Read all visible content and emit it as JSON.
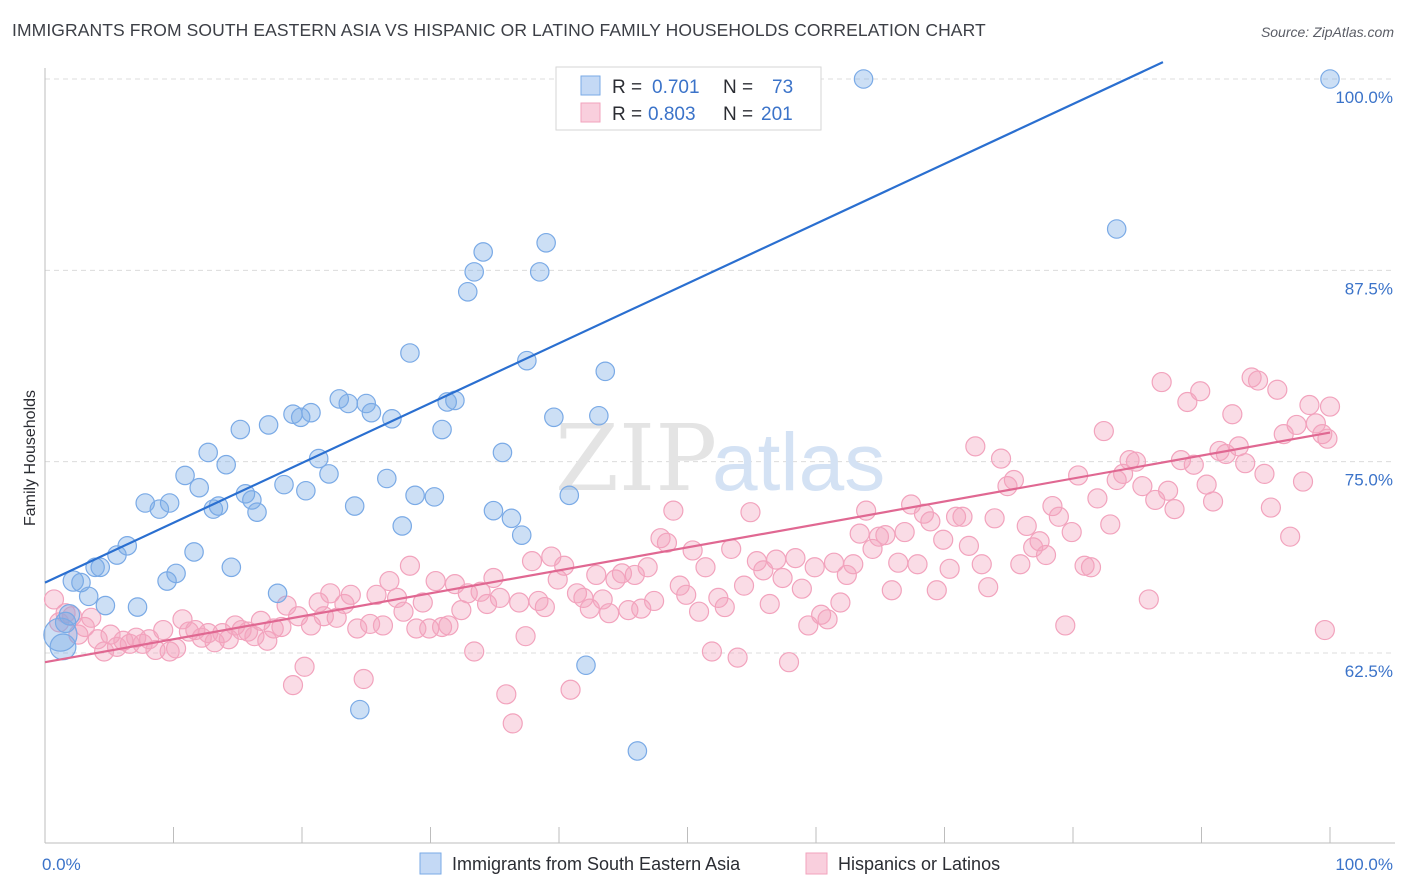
{
  "title": "IMMIGRANTS FROM SOUTH EASTERN ASIA VS HISPANIC OR LATINO FAMILY HOUSEHOLDS CORRELATION CHART",
  "source": "Source: ZipAtlas.com",
  "watermark": {
    "zip": "ZIP",
    "atlas": "atlas"
  },
  "colors": {
    "blue": "#7aaae6",
    "blue_line": "#2a6fd0",
    "pink": "#f2a3bd",
    "pink_line": "#e06892",
    "axis_text": "#3b73c9",
    "grid": "#dcdcdc"
  },
  "chart_data": {
    "type": "scatter",
    "title": "IMMIGRANTS FROM SOUTH EASTERN ASIA VS HISPANIC OR LATINO FAMILY HOUSEHOLDS CORRELATION CHART",
    "xlabel": "",
    "ylabel": "Family Households",
    "xlim": [
      0,
      100
    ],
    "ylim": [
      53.5,
      101.5
    ],
    "x_tick_labels": [
      "0.0%",
      "100.0%"
    ],
    "y_tick_labels": [
      "100.0%",
      "87.5%",
      "75.0%",
      "62.5%"
    ],
    "y_ticks": [
      100,
      87.5,
      75,
      62.5
    ],
    "grid": true,
    "legend_position": "bottom",
    "stats": [
      {
        "r_label": "R =",
        "r_value": "0.701",
        "n_label": "N =",
        "n_value": "73"
      },
      {
        "r_label": "R =",
        "r_value": "0.803",
        "n_label": "N =",
        "n_value": "201"
      }
    ],
    "series": [
      {
        "name": "Immigrants from South Eastern Asia",
        "color": "#7aaae6",
        "trend": {
          "x": [
            0,
            87
          ],
          "y": [
            67.1,
            101.1
          ]
        },
        "points": [
          [
            1.2,
            63.7
          ],
          [
            1.4,
            62.9
          ],
          [
            1.6,
            64.5
          ],
          [
            1.9,
            65.0
          ],
          [
            2.2,
            67.2
          ],
          [
            2.8,
            67.1
          ],
          [
            3.4,
            66.2
          ],
          [
            3.9,
            68.1
          ],
          [
            4.3,
            68.1
          ],
          [
            4.7,
            65.6
          ],
          [
            5.6,
            68.9
          ],
          [
            6.4,
            69.5
          ],
          [
            7.2,
            65.5
          ],
          [
            7.8,
            72.3
          ],
          [
            8.9,
            71.9
          ],
          [
            9.5,
            67.2
          ],
          [
            9.7,
            72.3
          ],
          [
            10.2,
            67.7
          ],
          [
            10.9,
            74.1
          ],
          [
            11.6,
            69.1
          ],
          [
            12.0,
            73.3
          ],
          [
            12.7,
            75.6
          ],
          [
            13.1,
            71.9
          ],
          [
            13.5,
            72.1
          ],
          [
            14.1,
            74.8
          ],
          [
            14.5,
            68.1
          ],
          [
            15.2,
            77.1
          ],
          [
            15.6,
            72.9
          ],
          [
            16.1,
            72.5
          ],
          [
            16.5,
            71.7
          ],
          [
            17.4,
            77.4
          ],
          [
            18.1,
            66.4
          ],
          [
            18.6,
            73.5
          ],
          [
            19.3,
            78.1
          ],
          [
            19.9,
            77.9
          ],
          [
            20.3,
            73.1
          ],
          [
            20.7,
            78.2
          ],
          [
            21.3,
            75.2
          ],
          [
            22.1,
            74.2
          ],
          [
            22.9,
            79.1
          ],
          [
            23.6,
            78.8
          ],
          [
            24.1,
            72.1
          ],
          [
            24.5,
            58.8
          ],
          [
            25.0,
            78.8
          ],
          [
            25.4,
            78.2
          ],
          [
            26.6,
            73.9
          ],
          [
            27.0,
            77.8
          ],
          [
            27.8,
            70.8
          ],
          [
            28.4,
            82.1
          ],
          [
            28.8,
            72.8
          ],
          [
            30.3,
            72.7
          ],
          [
            30.9,
            77.1
          ],
          [
            31.3,
            78.9
          ],
          [
            31.9,
            79.0
          ],
          [
            32.9,
            86.1
          ],
          [
            33.4,
            87.4
          ],
          [
            34.1,
            88.7
          ],
          [
            34.9,
            71.8
          ],
          [
            35.6,
            75.6
          ],
          [
            36.3,
            71.3
          ],
          [
            37.1,
            70.2
          ],
          [
            37.5,
            81.6
          ],
          [
            38.5,
            87.4
          ],
          [
            39.0,
            89.3
          ],
          [
            39.6,
            77.9
          ],
          [
            40.8,
            72.8
          ],
          [
            42.1,
            61.7
          ],
          [
            43.1,
            78.0
          ],
          [
            43.6,
            80.9
          ],
          [
            46.1,
            56.1
          ],
          [
            63.7,
            100.0
          ],
          [
            83.4,
            90.2
          ],
          [
            100.0,
            100.0
          ]
        ],
        "point_sizes": [
          18,
          14,
          11,
          11,
          11,
          10,
          10,
          10,
          10,
          10,
          10,
          10,
          10,
          10,
          10,
          10,
          10,
          10,
          10,
          10,
          10,
          10,
          10,
          10,
          10,
          10,
          10,
          10,
          10,
          10,
          10,
          10,
          10,
          10,
          10,
          10,
          10,
          10,
          10,
          10,
          10,
          10,
          10,
          10,
          10,
          10,
          10,
          10,
          10,
          10,
          10,
          10,
          10,
          10,
          10,
          10,
          10,
          10,
          10,
          10,
          10,
          10,
          10,
          10,
          10,
          10,
          10,
          10,
          10,
          10,
          10,
          10,
          10
        ]
      },
      {
        "name": "Hispanics or Latinos",
        "color": "#f2a3bd",
        "trend": {
          "x": [
            0,
            100
          ],
          "y": [
            61.9,
            76.9
          ]
        },
        "points": [
          [
            0.7,
            66.0
          ],
          [
            1.1,
            64.5
          ],
          [
            1.6,
            65.1
          ],
          [
            2.1,
            64.9
          ],
          [
            2.6,
            63.7
          ],
          [
            3.1,
            64.2
          ],
          [
            3.6,
            64.8
          ],
          [
            4.1,
            63.4
          ],
          [
            4.6,
            62.6
          ],
          [
            5.1,
            63.7
          ],
          [
            5.6,
            62.9
          ],
          [
            6.1,
            63.3
          ],
          [
            6.6,
            63.1
          ],
          [
            7.1,
            63.5
          ],
          [
            7.6,
            63.1
          ],
          [
            8.1,
            63.4
          ],
          [
            8.6,
            62.7
          ],
          [
            9.2,
            64.0
          ],
          [
            9.7,
            62.6
          ],
          [
            10.2,
            62.8
          ],
          [
            10.7,
            64.7
          ],
          [
            11.2,
            63.9
          ],
          [
            11.7,
            64.0
          ],
          [
            12.2,
            63.5
          ],
          [
            12.7,
            63.8
          ],
          [
            13.2,
            63.2
          ],
          [
            13.8,
            63.8
          ],
          [
            14.3,
            63.4
          ],
          [
            14.8,
            64.3
          ],
          [
            15.3,
            64.0
          ],
          [
            15.8,
            63.9
          ],
          [
            16.3,
            63.6
          ],
          [
            16.8,
            64.6
          ],
          [
            17.3,
            63.3
          ],
          [
            17.8,
            64.1
          ],
          [
            18.4,
            64.2
          ],
          [
            18.8,
            65.6
          ],
          [
            19.3,
            60.4
          ],
          [
            19.7,
            64.9
          ],
          [
            20.2,
            61.6
          ],
          [
            20.7,
            64.3
          ],
          [
            21.3,
            65.8
          ],
          [
            21.7,
            64.9
          ],
          [
            22.2,
            66.4
          ],
          [
            22.7,
            64.8
          ],
          [
            23.3,
            65.7
          ],
          [
            23.8,
            66.3
          ],
          [
            24.3,
            64.1
          ],
          [
            24.8,
            60.8
          ],
          [
            25.3,
            64.4
          ],
          [
            25.8,
            66.3
          ],
          [
            26.3,
            64.3
          ],
          [
            26.8,
            67.2
          ],
          [
            27.4,
            66.1
          ],
          [
            27.9,
            65.2
          ],
          [
            28.4,
            68.2
          ],
          [
            28.9,
            64.1
          ],
          [
            29.4,
            65.8
          ],
          [
            29.9,
            64.1
          ],
          [
            30.4,
            67.2
          ],
          [
            30.9,
            64.2
          ],
          [
            31.4,
            64.3
          ],
          [
            31.9,
            67.0
          ],
          [
            32.4,
            65.3
          ],
          [
            32.9,
            66.4
          ],
          [
            33.4,
            62.6
          ],
          [
            33.9,
            66.5
          ],
          [
            34.4,
            65.7
          ],
          [
            34.9,
            67.4
          ],
          [
            35.4,
            66.1
          ],
          [
            35.9,
            59.8
          ],
          [
            36.4,
            57.9
          ],
          [
            36.9,
            65.8
          ],
          [
            37.4,
            63.6
          ],
          [
            37.9,
            68.5
          ],
          [
            38.4,
            65.9
          ],
          [
            38.9,
            65.5
          ],
          [
            39.4,
            68.8
          ],
          [
            39.9,
            67.3
          ],
          [
            40.4,
            68.2
          ],
          [
            40.9,
            60.1
          ],
          [
            41.4,
            66.4
          ],
          [
            41.9,
            66.1
          ],
          [
            42.4,
            65.4
          ],
          [
            42.9,
            67.6
          ],
          [
            43.4,
            66.0
          ],
          [
            43.9,
            65.1
          ],
          [
            44.4,
            67.3
          ],
          [
            44.9,
            67.7
          ],
          [
            45.4,
            65.3
          ],
          [
            45.9,
            67.6
          ],
          [
            46.4,
            65.4
          ],
          [
            46.9,
            68.1
          ],
          [
            47.4,
            65.9
          ],
          [
            47.9,
            70.0
          ],
          [
            48.4,
            69.7
          ],
          [
            48.9,
            71.8
          ],
          [
            49.4,
            66.9
          ],
          [
            49.9,
            66.3
          ],
          [
            50.4,
            69.2
          ],
          [
            50.9,
            65.2
          ],
          [
            51.4,
            68.1
          ],
          [
            51.9,
            62.6
          ],
          [
            52.4,
            66.1
          ],
          [
            52.9,
            65.5
          ],
          [
            53.4,
            69.3
          ],
          [
            53.9,
            62.2
          ],
          [
            54.4,
            66.9
          ],
          [
            54.9,
            71.7
          ],
          [
            55.4,
            68.5
          ],
          [
            55.9,
            67.9
          ],
          [
            56.4,
            65.7
          ],
          [
            56.9,
            68.6
          ],
          [
            57.4,
            67.4
          ],
          [
            57.9,
            61.9
          ],
          [
            58.4,
            68.7
          ],
          [
            58.9,
            66.7
          ],
          [
            59.4,
            64.3
          ],
          [
            59.9,
            68.1
          ],
          [
            60.4,
            65.0
          ],
          [
            60.9,
            64.7
          ],
          [
            61.4,
            68.4
          ],
          [
            61.9,
            65.8
          ],
          [
            62.4,
            67.6
          ],
          [
            62.9,
            68.3
          ],
          [
            63.4,
            70.3
          ],
          [
            63.9,
            71.8
          ],
          [
            64.4,
            69.3
          ],
          [
            64.9,
            70.1
          ],
          [
            65.4,
            70.2
          ],
          [
            65.9,
            66.6
          ],
          [
            66.4,
            68.4
          ],
          [
            66.9,
            70.4
          ],
          [
            67.4,
            72.2
          ],
          [
            67.9,
            68.3
          ],
          [
            68.4,
            71.6
          ],
          [
            68.9,
            71.1
          ],
          [
            69.4,
            66.6
          ],
          [
            69.9,
            69.9
          ],
          [
            70.4,
            68.0
          ],
          [
            70.9,
            71.4
          ],
          [
            71.4,
            71.4
          ],
          [
            71.9,
            69.5
          ],
          [
            72.4,
            76.0
          ],
          [
            72.9,
            68.3
          ],
          [
            73.4,
            66.8
          ],
          [
            73.9,
            71.3
          ],
          [
            74.4,
            75.2
          ],
          [
            74.9,
            73.4
          ],
          [
            75.4,
            73.8
          ],
          [
            75.9,
            68.3
          ],
          [
            76.4,
            70.8
          ],
          [
            76.9,
            69.4
          ],
          [
            77.4,
            69.8
          ],
          [
            77.9,
            68.9
          ],
          [
            78.4,
            72.1
          ],
          [
            78.9,
            71.4
          ],
          [
            79.4,
            64.3
          ],
          [
            79.9,
            70.4
          ],
          [
            80.4,
            74.1
          ],
          [
            80.9,
            68.2
          ],
          [
            81.4,
            68.1
          ],
          [
            81.9,
            72.6
          ],
          [
            82.4,
            77.0
          ],
          [
            82.9,
            70.9
          ],
          [
            83.4,
            73.8
          ],
          [
            83.9,
            74.2
          ],
          [
            84.4,
            75.1
          ],
          [
            84.9,
            75.0
          ],
          [
            85.4,
            73.4
          ],
          [
            85.9,
            66.0
          ],
          [
            86.4,
            72.5
          ],
          [
            86.9,
            80.2
          ],
          [
            87.4,
            73.1
          ],
          [
            87.9,
            71.9
          ],
          [
            88.4,
            75.1
          ],
          [
            88.9,
            78.9
          ],
          [
            89.4,
            74.8
          ],
          [
            89.9,
            79.6
          ],
          [
            90.4,
            73.5
          ],
          [
            90.9,
            72.4
          ],
          [
            91.4,
            75.7
          ],
          [
            91.9,
            75.5
          ],
          [
            92.4,
            78.1
          ],
          [
            92.9,
            76.0
          ],
          [
            93.4,
            74.9
          ],
          [
            93.9,
            80.5
          ],
          [
            94.4,
            80.3
          ],
          [
            94.9,
            74.2
          ],
          [
            95.4,
            72.0
          ],
          [
            95.9,
            79.7
          ],
          [
            96.4,
            76.8
          ],
          [
            96.9,
            70.1
          ],
          [
            97.4,
            77.4
          ],
          [
            97.9,
            73.7
          ],
          [
            98.4,
            78.7
          ],
          [
            98.9,
            77.5
          ],
          [
            99.4,
            76.8
          ],
          [
            99.8,
            76.5
          ],
          [
            100.0,
            78.6
          ],
          [
            99.6,
            64.0
          ]
        ]
      }
    ]
  },
  "legend": {
    "items": [
      {
        "label": "Immigrants from South Eastern Asia",
        "color": "#7aaae6"
      },
      {
        "label": "Hispanics or Latinos",
        "color": "#f2a3bd"
      }
    ]
  }
}
